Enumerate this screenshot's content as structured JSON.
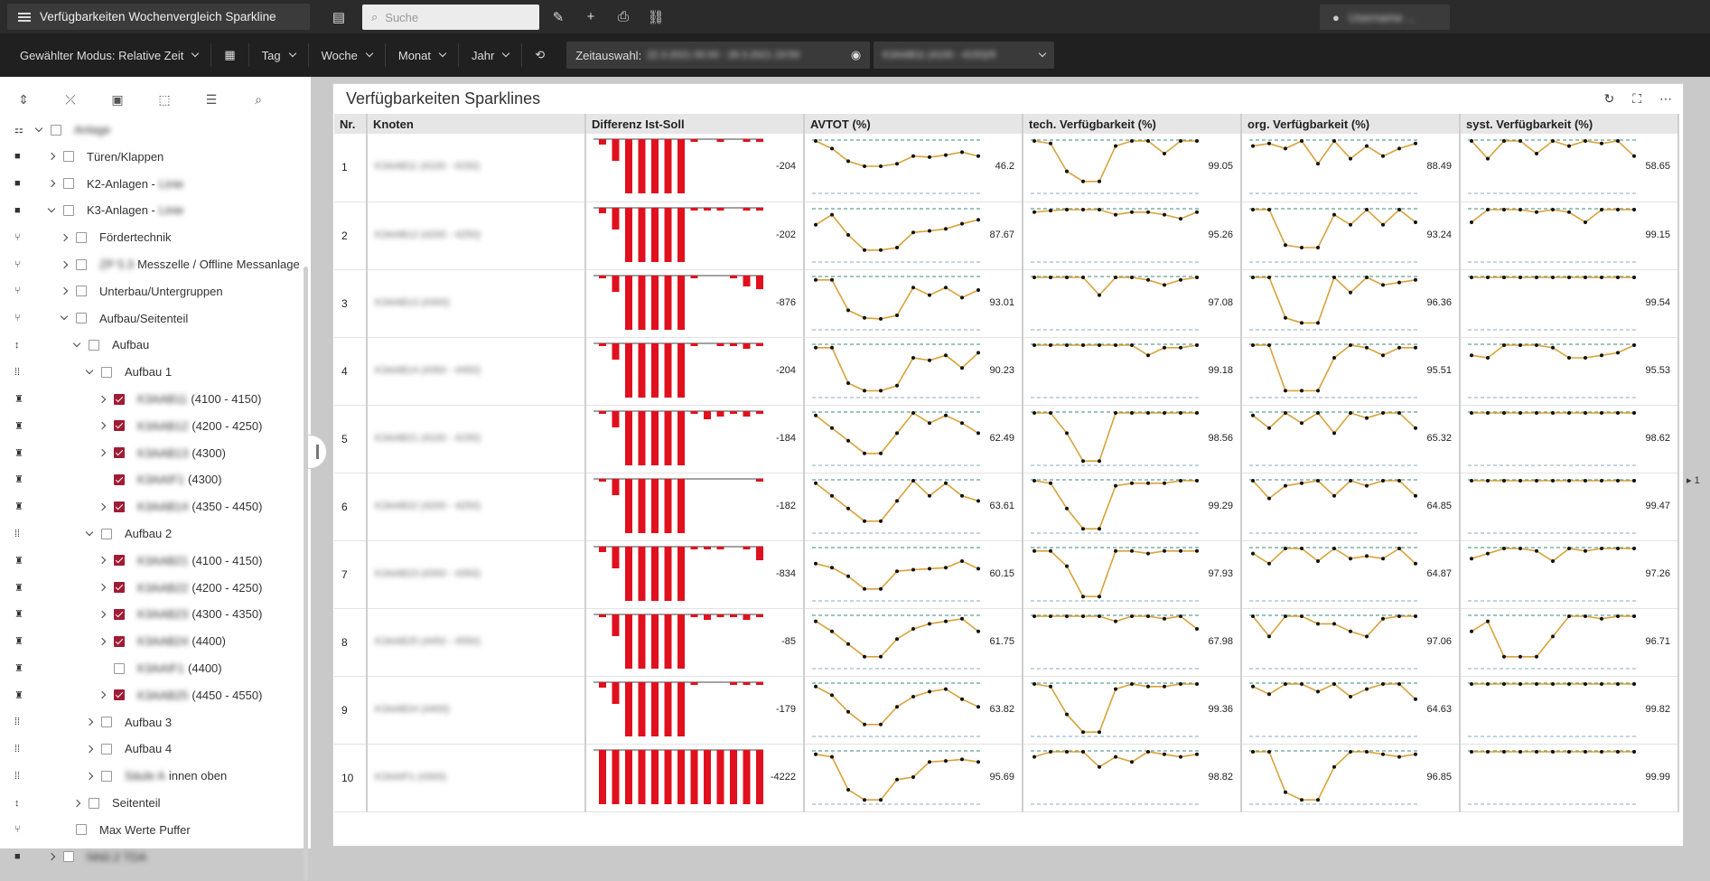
{
  "app": {
    "title": "Verfügbarkeiten Wochenvergleich Sparkline",
    "search_placeholder": "Suche",
    "user": "Username ..."
  },
  "toolbar2": {
    "modus": "Gewählter Modus: Relative Zeit",
    "tag": "Tag",
    "woche": "Woche",
    "monat": "Monat",
    "jahr": "Jahr",
    "zeitauswahl_label": "Zeitauswahl:",
    "zeitauswahl_value": "22.3.2021 00:00 - 28.3.2021 23:59",
    "node_select": "K3AAB11 (4100 - 4150)/9"
  },
  "tree": [
    {
      "label": "Anlage",
      "blur": true,
      "depth": 0,
      "arrow": "d",
      "icon": "⚏"
    },
    {
      "label": "Türen/Klappen",
      "depth": 1,
      "arrow": "r",
      "icon": "■"
    },
    {
      "label": "K2-Anlagen - ",
      "suffix": "Linie",
      "depth": 1,
      "arrow": "r",
      "icon": "■"
    },
    {
      "label": "K3-Anlagen - ",
      "suffix": "Linie",
      "depth": 1,
      "arrow": "d",
      "icon": "■"
    },
    {
      "label": "Fördertechnik",
      "depth": 2,
      "arrow": "r",
      "icon": "⑂"
    },
    {
      "label": "ZP 5.3 ",
      "labelblur": true,
      "tail": "Messzelle / Offline Messanlage",
      "depth": 2,
      "arrow": "r",
      "icon": "⑂"
    },
    {
      "label": "Unterbau/Untergruppen",
      "depth": 2,
      "arrow": "r",
      "icon": "⑂"
    },
    {
      "label": "Aufbau/Seitenteil",
      "depth": 2,
      "arrow": "d",
      "icon": "⑂"
    },
    {
      "label": "Aufbau",
      "depth": 3,
      "arrow": "d",
      "icon": "↕"
    },
    {
      "label": "Aufbau 1",
      "depth": 4,
      "arrow": "d",
      "icon": "⁞⁞"
    },
    {
      "label": "K3AAB11",
      "labelblur": true,
      "tail": "(4100 - 4150)",
      "depth": 5,
      "arrow": "r",
      "checked": true,
      "icon": "♜"
    },
    {
      "label": "K3AAB12",
      "labelblur": true,
      "tail": "(4200 - 4250)",
      "depth": 5,
      "arrow": "r",
      "checked": true,
      "icon": "♜"
    },
    {
      "label": "K3AAB13",
      "labelblur": true,
      "tail": "(4300)",
      "depth": 5,
      "arrow": "r",
      "checked": true,
      "icon": "♜"
    },
    {
      "label": "K3AAIF1",
      "labelblur": true,
      "tail": "(4300)",
      "depth": 5,
      "arrow": "",
      "checked": true,
      "icon": "♜"
    },
    {
      "label": "K3AAB14",
      "labelblur": true,
      "tail": "(4350 - 4450)",
      "depth": 5,
      "arrow": "r",
      "checked": true,
      "icon": "♜"
    },
    {
      "label": "Aufbau 2",
      "depth": 4,
      "arrow": "d",
      "icon": "⁞⁞"
    },
    {
      "label": "K3AAB21",
      "labelblur": true,
      "tail": "(4100 - 4150)",
      "depth": 5,
      "arrow": "r",
      "checked": true,
      "icon": "♜"
    },
    {
      "label": "K3AAB22",
      "labelblur": true,
      "tail": "(4200 - 4250)",
      "depth": 5,
      "arrow": "r",
      "checked": true,
      "icon": "♜"
    },
    {
      "label": "K3AAB23",
      "labelblur": true,
      "tail": "(4300 - 4350)",
      "depth": 5,
      "arrow": "r",
      "checked": true,
      "icon": "♜"
    },
    {
      "label": "K3AAB24",
      "labelblur": true,
      "tail": "(4400)",
      "depth": 5,
      "arrow": "r",
      "checked": true,
      "icon": "♜"
    },
    {
      "label": "K3AAIF1",
      "labelblur": true,
      "tail": "(4400)",
      "depth": 5,
      "arrow": "",
      "checked": false,
      "icon": "♜"
    },
    {
      "label": "K3AAB25",
      "labelblur": true,
      "tail": "(4450 - 4550)",
      "depth": 5,
      "arrow": "r",
      "checked": true,
      "icon": "♜"
    },
    {
      "label": "Aufbau 3",
      "depth": 4,
      "arrow": "r",
      "icon": "⁞⁞"
    },
    {
      "label": "Aufbau 4",
      "depth": 4,
      "arrow": "r",
      "icon": "⁞⁞"
    },
    {
      "label": "Säule A ",
      "labelblur": true,
      "tail": "innen oben",
      "depth": 4,
      "arrow": "r",
      "icon": "⁞⁞"
    },
    {
      "label": "Seitenteil",
      "depth": 3,
      "arrow": "r",
      "icon": "↕"
    },
    {
      "label": "Max Werte Puffer",
      "depth": 2,
      "arrow": "",
      "icon": "⑂"
    },
    {
      "label": "NN0.2 TDA",
      "blur": true,
      "depth": 1,
      "arrow": "r",
      "icon": "■"
    }
  ],
  "panel": {
    "title": "Verfügbarkeiten Sparklines",
    "page": "1"
  },
  "table": {
    "headers": [
      "Nr.",
      "Knoten",
      "Differenz Ist-Soll",
      "AVTOT (%)",
      "tech. Verfügbarkeit (%)",
      "org. Verfügbarkeit (%)",
      "syst. Verfügbarkeit (%)"
    ],
    "rows": [
      {
        "nr": "1",
        "knoten": "K3AAB11 (4100 - 4150)",
        "diff": "-204",
        "avtot": "46.2",
        "tech": "99.05",
        "org": "88.49",
        "syst": "58.65"
      },
      {
        "nr": "2",
        "knoten": "K3AAB12 (4200 - 4250)",
        "diff": "-202",
        "avtot": "87.67",
        "tech": "95.26",
        "org": "93.24",
        "syst": "99.15"
      },
      {
        "nr": "3",
        "knoten": "K3AAB13 (4300)",
        "diff": "-876",
        "avtot": "93.01",
        "tech": "97.08",
        "org": "96.36",
        "syst": "99.54"
      },
      {
        "nr": "4",
        "knoten": "K3AAB14 (4350 - 4450)",
        "diff": "-204",
        "avtot": "90.23",
        "tech": "99.18",
        "org": "95.51",
        "syst": "95.53"
      },
      {
        "nr": "5",
        "knoten": "K3AAB21 (4100 - 4150)",
        "diff": "-184",
        "avtot": "62.49",
        "tech": "98.56",
        "org": "65.32",
        "syst": "98.62"
      },
      {
        "nr": "6",
        "knoten": "K3AAB22 (4200 - 4250)",
        "diff": "-182",
        "avtot": "63.61",
        "tech": "99.29",
        "org": "64.85",
        "syst": "99.47"
      },
      {
        "nr": "7",
        "knoten": "K3AAB23 (4300 - 4350)",
        "diff": "-834",
        "avtot": "60.15",
        "tech": "97.93",
        "org": "64.87",
        "syst": "97.26"
      },
      {
        "nr": "8",
        "knoten": "K3AAB25 (4450 - 4550)",
        "diff": "-85",
        "avtot": "61.75",
        "tech": "67.98",
        "org": "97.06",
        "syst": "96.71"
      },
      {
        "nr": "9",
        "knoten": "K3AAB24 (4400)",
        "diff": "-179",
        "avtot": "63.82",
        "tech": "99.36",
        "org": "64.63",
        "syst": "99.82"
      },
      {
        "nr": "10",
        "knoten": "K3AAIF1 (4300)",
        "diff": "-4222",
        "avtot": "95.69",
        "tech": "98.82",
        "org": "96.85",
        "syst": "99.99"
      }
    ]
  },
  "colors": {
    "bar": "#e0101e",
    "line": "#d8a23a",
    "dot": "#111111",
    "ref_top": "#3a8a7a",
    "ref_bottom": "#8aa8c8",
    "checkbox": "#a01c34"
  },
  "chart_data": {
    "type": "line",
    "note": "sparklines per row and column, values in percent / difference",
    "diff_bars": [
      [
        -2,
        -8,
        -20,
        -20,
        -20,
        -20,
        -20,
        -1,
        0,
        -1,
        0,
        -1,
        -1
      ],
      [
        -2,
        -8,
        -20,
        -20,
        -20,
        -20,
        -20,
        -1,
        -1,
        -1,
        0,
        -1,
        -1
      ],
      [
        -1,
        -6,
        -20,
        -20,
        -20,
        -20,
        -20,
        -1,
        0,
        0,
        -1,
        -4,
        -5
      ],
      [
        -1,
        -6,
        -20,
        -20,
        -20,
        -20,
        -20,
        -1,
        0,
        -1,
        -1,
        -2,
        -1
      ],
      [
        -1,
        -6,
        -20,
        -20,
        -20,
        -20,
        -20,
        -1,
        -3,
        -2,
        -1,
        -2,
        -1
      ],
      [
        -1,
        -6,
        -20,
        -20,
        -20,
        -20,
        -20,
        0,
        0,
        0,
        0,
        0,
        -1
      ],
      [
        -2,
        -8,
        -20,
        -20,
        -20,
        -20,
        -20,
        -1,
        -1,
        -1,
        0,
        -1,
        -5
      ],
      [
        -1,
        -8,
        -20,
        -20,
        -20,
        -20,
        -20,
        -1,
        -2,
        -1,
        -1,
        -2,
        -1
      ],
      [
        -2,
        -8,
        -20,
        -20,
        -20,
        -20,
        -20,
        -1,
        0,
        0,
        -1,
        -1,
        -1
      ],
      [
        -20,
        -20,
        -20,
        -20,
        -20,
        -20,
        -20,
        -20,
        -20,
        -20,
        -20,
        -20,
        -20
      ]
    ],
    "avtot": [
      [
        100,
        85,
        60,
        50,
        50,
        55,
        70,
        68,
        72,
        78,
        70
      ],
      [
        70,
        90,
        50,
        20,
        20,
        25,
        55,
        58,
        62,
        72,
        80
      ],
      [
        95,
        95,
        35,
        20,
        18,
        25,
        80,
        65,
        80,
        60,
        75
      ],
      [
        95,
        95,
        25,
        10,
        10,
        20,
        75,
        70,
        80,
        55,
        85
      ],
      [
        95,
        70,
        45,
        20,
        20,
        60,
        100,
        80,
        95,
        80,
        60
      ],
      [
        95,
        70,
        45,
        20,
        20,
        60,
        100,
        70,
        95,
        70,
        60
      ],
      [
        70,
        62,
        45,
        20,
        20,
        55,
        58,
        60,
        62,
        75,
        60
      ],
      [
        90,
        70,
        45,
        20,
        20,
        55,
        75,
        85,
        90,
        95,
        70
      ],
      [
        95,
        78,
        45,
        20,
        20,
        55,
        75,
        85,
        90,
        70,
        55
      ],
      [
        95,
        90,
        25,
        5,
        5,
        45,
        50,
        80,
        82,
        85,
        80
      ]
    ],
    "tech": [
      [
        100,
        95,
        40,
        20,
        20,
        90,
        100,
        100,
        75,
        100,
        100
      ],
      [
        95,
        98,
        100,
        100,
        100,
        90,
        95,
        95,
        90,
        82,
        95
      ],
      [
        100,
        100,
        100,
        100,
        65,
        100,
        100,
        95,
        85,
        95,
        100
      ],
      [
        100,
        100,
        100,
        100,
        100,
        100,
        100,
        80,
        95,
        95,
        100
      ],
      [
        100,
        100,
        60,
        5,
        5,
        100,
        100,
        100,
        100,
        100,
        100
      ],
      [
        100,
        95,
        45,
        5,
        5,
        90,
        95,
        95,
        95,
        100,
        100
      ],
      [
        95,
        95,
        65,
        5,
        5,
        95,
        95,
        90,
        95,
        95,
        95
      ],
      [
        100,
        100,
        100,
        100,
        100,
        90,
        100,
        100,
        95,
        100,
        75
      ],
      [
        100,
        95,
        40,
        5,
        5,
        90,
        100,
        95,
        95,
        100,
        100
      ],
      [
        90,
        100,
        100,
        100,
        70,
        90,
        80,
        100,
        95,
        90,
        95
      ]
    ],
    "org": [
      [
        90,
        95,
        85,
        100,
        55,
        100,
        65,
        90,
        70,
        85,
        95
      ],
      [
        100,
        100,
        30,
        25,
        25,
        90,
        70,
        100,
        70,
        100,
        75
      ],
      [
        100,
        100,
        20,
        10,
        10,
        100,
        70,
        100,
        85,
        90,
        95
      ],
      [
        100,
        100,
        10,
        10,
        10,
        75,
        100,
        95,
        80,
        95,
        95
      ],
      [
        95,
        70,
        100,
        80,
        100,
        60,
        100,
        90,
        100,
        100,
        70
      ],
      [
        100,
        65,
        90,
        95,
        100,
        70,
        100,
        90,
        100,
        100,
        70
      ],
      [
        90,
        70,
        100,
        100,
        75,
        100,
        80,
        85,
        80,
        100,
        70
      ],
      [
        100,
        60,
        100,
        100,
        85,
        85,
        70,
        60,
        95,
        100,
        100
      ],
      [
        95,
        80,
        100,
        100,
        85,
        100,
        75,
        90,
        100,
        100,
        70
      ],
      [
        100,
        100,
        20,
        5,
        5,
        70,
        100,
        100,
        95,
        90,
        95
      ]
    ],
    "syst": [
      [
        100,
        65,
        100,
        100,
        75,
        100,
        90,
        100,
        95,
        100,
        70
      ],
      [
        75,
        100,
        100,
        100,
        95,
        100,
        95,
        75,
        100,
        100,
        100
      ],
      [
        100,
        100,
        100,
        100,
        100,
        100,
        100,
        100,
        100,
        100,
        100
      ],
      [
        80,
        75,
        100,
        100,
        100,
        95,
        75,
        75,
        80,
        85,
        100
      ],
      [
        100,
        100,
        100,
        100,
        100,
        100,
        100,
        100,
        100,
        100,
        100
      ],
      [
        100,
        100,
        100,
        100,
        100,
        100,
        100,
        100,
        100,
        100,
        100
      ],
      [
        80,
        90,
        100,
        100,
        95,
        75,
        100,
        95,
        100,
        100,
        100
      ],
      [
        70,
        90,
        20,
        20,
        20,
        60,
        100,
        100,
        95,
        100,
        100
      ],
      [
        100,
        100,
        100,
        100,
        100,
        100,
        100,
        100,
        100,
        100,
        100
      ],
      [
        100,
        100,
        100,
        100,
        100,
        100,
        100,
        100,
        100,
        100,
        100
      ]
    ]
  }
}
